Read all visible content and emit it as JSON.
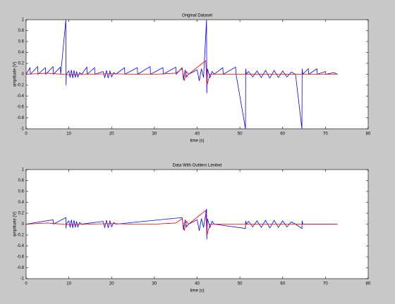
{
  "chart_data": [
    {
      "type": "line",
      "title": "Original Dataset",
      "xlabel": "time (s)",
      "ylabel": "amplitude (V)",
      "xlim": [
        0,
        80
      ],
      "xticks": [
        0,
        10,
        20,
        30,
        40,
        50,
        60,
        70,
        80
      ],
      "ylim": [
        -1,
        1
      ],
      "yticks": [
        -1,
        -0.8,
        -0.6,
        -0.4,
        -0.2,
        0,
        0.2,
        0.4,
        0.6,
        0.8,
        1
      ],
      "series": [
        {
          "color": "#0000ff",
          "x": [
            0,
            0.9,
            1,
            2.7,
            2.8,
            4.5,
            4.6,
            6.3,
            6.4,
            8,
            8.1,
            9.3,
            9.35,
            9.4,
            10,
            10.3,
            10.6,
            10.9,
            11.2,
            11.5,
            11.8,
            12.1,
            12.5,
            13,
            14.2,
            14.3,
            16,
            16.1,
            18,
            18.4,
            18.8,
            19.2,
            19.6,
            20,
            20.5,
            21,
            23,
            23.1,
            26,
            26.1,
            29,
            29.1,
            32,
            32.1,
            35,
            35.1,
            36.5,
            36.8,
            37.2,
            37.5,
            38,
            40,
            40.5,
            41,
            41.5,
            42.2,
            42.25,
            42.4,
            43,
            43.5,
            44,
            46,
            46.1,
            49,
            49.1,
            51.3,
            51.35,
            51.5,
            52,
            53,
            54,
            55,
            56,
            57,
            58,
            59,
            60,
            61,
            62,
            63,
            64.5,
            64.55,
            64.7,
            66,
            66.1,
            68,
            68.1,
            70,
            70.1,
            72,
            72.8
          ],
          "values": [
            0,
            0.12,
            0,
            0.14,
            0,
            0.12,
            0,
            0.14,
            0,
            0.13,
            0,
            1,
            -0.2,
            0,
            0.06,
            -0.06,
            0.08,
            -0.07,
            0.07,
            -0.06,
            0.05,
            -0.05,
            0.03,
            0,
            0.13,
            0,
            0.12,
            0,
            0.05,
            -0.06,
            0.07,
            -0.07,
            0.06,
            -0.05,
            0.03,
            0,
            0.12,
            0,
            0.12,
            0,
            0.14,
            0,
            0.12,
            0,
            0.13,
            0,
            0.12,
            -0.1,
            0.08,
            -0.05,
            0,
            0.08,
            -0.12,
            0.1,
            -0.06,
            1,
            -0.35,
            0.1,
            -0.06,
            0.05,
            0,
            0.12,
            0,
            0.13,
            0,
            -1,
            0.1,
            0,
            0.05,
            -0.05,
            0.06,
            -0.06,
            0.07,
            -0.07,
            0.07,
            -0.06,
            0.06,
            -0.05,
            0.04,
            0,
            -1,
            0.1,
            0,
            0.1,
            0,
            0.1,
            0,
            0.05,
            0,
            0.03,
            0
          ]
        },
        {
          "color": "#ff0000",
          "x": [
            0,
            5,
            10,
            15,
            20,
            25,
            30,
            35,
            36.5,
            37,
            37.5,
            38,
            42,
            42.3,
            43,
            50,
            55,
            60,
            65,
            72.8
          ],
          "values": [
            0,
            0.02,
            -0.01,
            0,
            0.01,
            0,
            0,
            0.02,
            0.1,
            -0.12,
            0.05,
            0,
            0.25,
            -0.2,
            0,
            0,
            0,
            0,
            0,
            0
          ]
        }
      ]
    },
    {
      "type": "line",
      "title": "Data With Outliers Limited",
      "xlabel": "time (s)",
      "ylabel": "amplitude (V)",
      "xlim": [
        0,
        80
      ],
      "xticks": [
        0,
        10,
        20,
        30,
        40,
        50,
        60,
        70,
        80
      ],
      "ylim": [
        -1,
        1
      ],
      "yticks": [
        -1,
        -0.8,
        -0.6,
        -0.4,
        -0.2,
        0,
        0.2,
        0.4,
        0.6,
        0.8,
        1
      ],
      "series": [
        {
          "color": "#0000ff",
          "x": [
            0,
            6.3,
            6.4,
            9.3,
            9.35,
            9.4,
            10,
            10.3,
            10.6,
            10.9,
            11.2,
            11.5,
            11.8,
            12.1,
            12.5,
            13,
            18,
            18.4,
            18.8,
            19.2,
            19.6,
            20,
            20.5,
            21,
            36.5,
            36.8,
            37.2,
            37.5,
            38,
            40,
            40.5,
            41,
            41.5,
            42.2,
            42.25,
            42.4,
            43,
            43.5,
            44,
            51.3,
            51.35,
            51.5,
            52,
            53,
            54,
            55,
            56,
            57,
            58,
            59,
            60,
            61,
            62,
            63,
            64.5,
            64.55,
            64.7,
            72.8
          ],
          "values": [
            0,
            0.08,
            0,
            0.12,
            -0.08,
            0,
            0.06,
            -0.06,
            0.08,
            -0.07,
            0.07,
            -0.06,
            0.05,
            -0.05,
            0.03,
            0,
            0.05,
            -0.06,
            0.07,
            -0.07,
            0.06,
            -0.05,
            0.03,
            0,
            0.12,
            -0.1,
            0.08,
            -0.05,
            0,
            0.08,
            -0.12,
            0.1,
            -0.06,
            0.28,
            -0.28,
            0.1,
            -0.06,
            0.05,
            0,
            -0.08,
            0.06,
            0,
            0.05,
            -0.05,
            0.06,
            -0.06,
            0.07,
            -0.07,
            0.07,
            -0.06,
            0.06,
            -0.05,
            0.04,
            0,
            -0.08,
            0.06,
            0,
            0
          ]
        },
        {
          "color": "#ff0000",
          "x": [
            0,
            5,
            10,
            15,
            20,
            25,
            30,
            35,
            36.5,
            37,
            37.5,
            38,
            42,
            42.3,
            43,
            50,
            55,
            60,
            65,
            72.8
          ],
          "values": [
            0,
            0.02,
            -0.01,
            0,
            0.01,
            0,
            0,
            0.02,
            0.1,
            -0.12,
            0.05,
            0,
            0.25,
            -0.2,
            0,
            0,
            0,
            0,
            0,
            0
          ]
        }
      ]
    }
  ]
}
